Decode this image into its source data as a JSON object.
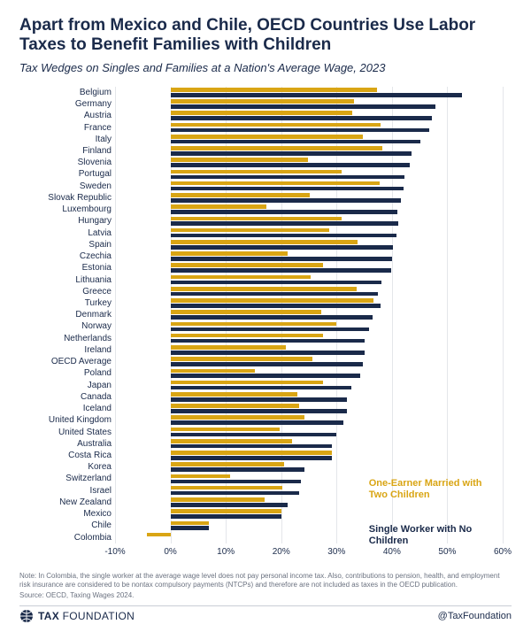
{
  "header": {
    "title": "Apart from Mexico and Chile, OECD Countries Use Labor Taxes to Benefit Families with Children",
    "subtitle": "Tax Wedges on Singles and Families at a Nation's Average Wage, 2023",
    "title_fontsize": 19,
    "subtitle_fontsize": 13,
    "title_color": "#1a2a4a"
  },
  "chart": {
    "type": "grouped-horizontal-bar",
    "x_min": -10,
    "x_max": 60,
    "x_tick_step": 10,
    "x_ticks": [
      "-10%",
      "0%",
      "10%",
      "20%",
      "30%",
      "40%",
      "50%",
      "60%"
    ],
    "grid_color": "#e4e6ea",
    "series": [
      {
        "key": "family",
        "label": "One-Earner Married with Two Children",
        "color": "#d9a514"
      },
      {
        "key": "single",
        "label": "Single Worker with No Children",
        "color": "#1a2a4a"
      }
    ],
    "legend_fontsize": 11,
    "legend_pos_family": {
      "left_pct": 71,
      "top_pct": 81
    },
    "legend_pos_single": {
      "left_pct": 71,
      "top_pct": 90.5
    },
    "rows": [
      {
        "label": "Belgium",
        "family": 37.3,
        "single": 52.7
      },
      {
        "label": "Germany",
        "family": 33.1,
        "single": 47.9
      },
      {
        "label": "Austria",
        "family": 32.8,
        "single": 47.2
      },
      {
        "label": "France",
        "family": 37.9,
        "single": 46.8
      },
      {
        "label": "Italy",
        "family": 34.7,
        "single": 45.1
      },
      {
        "label": "Finland",
        "family": 38.3,
        "single": 43.5
      },
      {
        "label": "Slovenia",
        "family": 24.8,
        "single": 43.3
      },
      {
        "label": "Portugal",
        "family": 30.9,
        "single": 42.3
      },
      {
        "label": "Sweden",
        "family": 37.8,
        "single": 42.1
      },
      {
        "label": "Slovak Republic",
        "family": 25.2,
        "single": 41.6
      },
      {
        "label": "Luxembourg",
        "family": 17.4,
        "single": 41.0
      },
      {
        "label": "Hungary",
        "family": 30.9,
        "single": 41.2
      },
      {
        "label": "Latvia",
        "family": 28.6,
        "single": 40.8
      },
      {
        "label": "Spain",
        "family": 33.8,
        "single": 40.2
      },
      {
        "label": "Czechia",
        "family": 21.1,
        "single": 40.1
      },
      {
        "label": "Estonia",
        "family": 27.6,
        "single": 39.9
      },
      {
        "label": "Lithuania",
        "family": 25.4,
        "single": 38.1
      },
      {
        "label": "Greece",
        "family": 33.6,
        "single": 37.5
      },
      {
        "label": "Turkey",
        "family": 36.6,
        "single": 37.9
      },
      {
        "label": "Denmark",
        "family": 27.2,
        "single": 36.5
      },
      {
        "label": "Norway",
        "family": 29.9,
        "single": 35.8
      },
      {
        "label": "Netherlands",
        "family": 27.6,
        "single": 35.1
      },
      {
        "label": "Ireland",
        "family": 20.8,
        "single": 35.0
      },
      {
        "label": "OECD Average",
        "family": 25.7,
        "single": 34.8
      },
      {
        "label": "Poland",
        "family": 15.2,
        "single": 34.2
      },
      {
        "label": "Japan",
        "family": 27.6,
        "single": 32.6
      },
      {
        "label": "Canada",
        "family": 22.9,
        "single": 31.9
      },
      {
        "label": "Iceland",
        "family": 23.2,
        "single": 31.8
      },
      {
        "label": "United Kingdom",
        "family": 24.2,
        "single": 31.3
      },
      {
        "label": "United States",
        "family": 19.7,
        "single": 29.9
      },
      {
        "label": "Australia",
        "family": 22.0,
        "single": 29.2
      },
      {
        "label": "Costa Rica",
        "family": 29.2,
        "single": 29.2
      },
      {
        "label": "Korea",
        "family": 20.6,
        "single": 24.2
      },
      {
        "label": "Switzerland",
        "family": 10.8,
        "single": 23.5
      },
      {
        "label": "Israel",
        "family": 20.2,
        "single": 23.2
      },
      {
        "label": "New Zealand",
        "family": 17.0,
        "single": 21.1
      },
      {
        "label": "Mexico",
        "family": 20.0,
        "single": 20.0
      },
      {
        "label": "Chile",
        "family": 7.0,
        "single": 7.0
      },
      {
        "label": "Colombia",
        "family": -4.3,
        "single": 0.0
      }
    ]
  },
  "notes": {
    "note": "Note: In Colombia, the single worker at the average wage level does not pay personal income tax. Also, contributions to pension, health, and employment risk insurance are considered to be nontax compulsory payments (NTCPs) and therefore are not included as taxes in the OECD publication.",
    "source": "Source: OECD, Taxing Wages 2024."
  },
  "footer": {
    "brand_a": "TAX",
    "brand_b": "FOUNDATION",
    "handle": "@TaxFoundation",
    "brand_color": "#1a2a4a"
  }
}
